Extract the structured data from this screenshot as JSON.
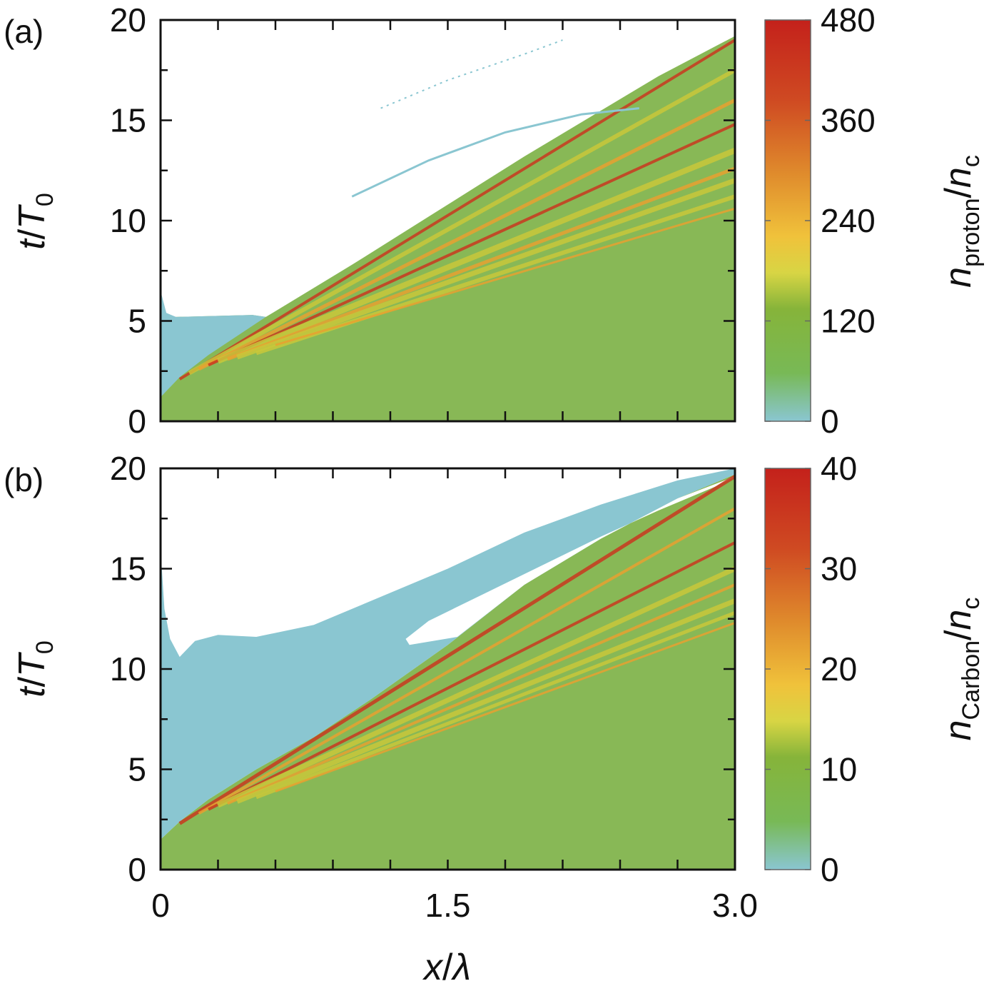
{
  "chart_data": [
    {
      "panel_label": "(a)",
      "type": "heatmap",
      "xlim": [
        0,
        3.0
      ],
      "ylim": [
        0,
        20
      ],
      "x_ticks": [
        "0",
        "1.5",
        "3.0"
      ],
      "y_ticks": [
        "0",
        "5",
        "10",
        "15",
        "20"
      ],
      "colorbar": {
        "min": 0,
        "max": 480,
        "ticks": [
          "0",
          "120",
          "240",
          "360",
          "480"
        ],
        "label": {
          "n": "n",
          "sub1": "proton",
          "sep": "/",
          "n2": "n",
          "sub2": "c"
        },
        "colors": [
          "#8ac6d1",
          "#6db63f",
          "#8db53a",
          "#f0c43a",
          "#e07b28",
          "#c4221b"
        ]
      },
      "regions": {
        "background": "#88b856",
        "vacuum": "#ffffff",
        "low_density": "#8ac6d1",
        "stripe_light": "#c9c73a",
        "stripe_orange": "#e8a030",
        "stripe_red": "#c9371f"
      },
      "front_x_at_t": {
        "t2": 0.1,
        "t5": 0.55,
        "t10": 1.4,
        "t15": 2.25,
        "t19_2": 3.0
      },
      "ylabel": {
        "t": "t",
        "sep": "/",
        "T": "T",
        "sub": "0"
      }
    },
    {
      "panel_label": "(b)",
      "type": "heatmap",
      "xlim": [
        0,
        3.0
      ],
      "ylim": [
        0,
        20
      ],
      "x_ticks": [
        "0",
        "1.5",
        "3.0"
      ],
      "y_ticks": [
        "0",
        "5",
        "10",
        "15",
        "20"
      ],
      "colorbar": {
        "min": 0,
        "max": 40,
        "ticks": [
          "0",
          "10",
          "20",
          "30",
          "40"
        ],
        "label": {
          "n": "n",
          "sub1": "Carbon",
          "sep": "/",
          "n2": "n",
          "sub2": "c"
        },
        "colors": [
          "#8ac6d1",
          "#6db63f",
          "#8db53a",
          "#f0c43a",
          "#e07b28",
          "#c4221b"
        ]
      },
      "regions": {
        "background": "#88b856",
        "vacuum": "#ffffff",
        "low_density": "#8ac6d1",
        "stripe_light": "#c9c73a",
        "stripe_orange": "#e8a030",
        "stripe_red": "#c9371f"
      },
      "ylabel": {
        "t": "t",
        "sep": "/",
        "T": "T",
        "sub": "0"
      }
    }
  ],
  "xlabel": {
    "x": "x",
    "sep": "/",
    "lambda": "λ"
  }
}
